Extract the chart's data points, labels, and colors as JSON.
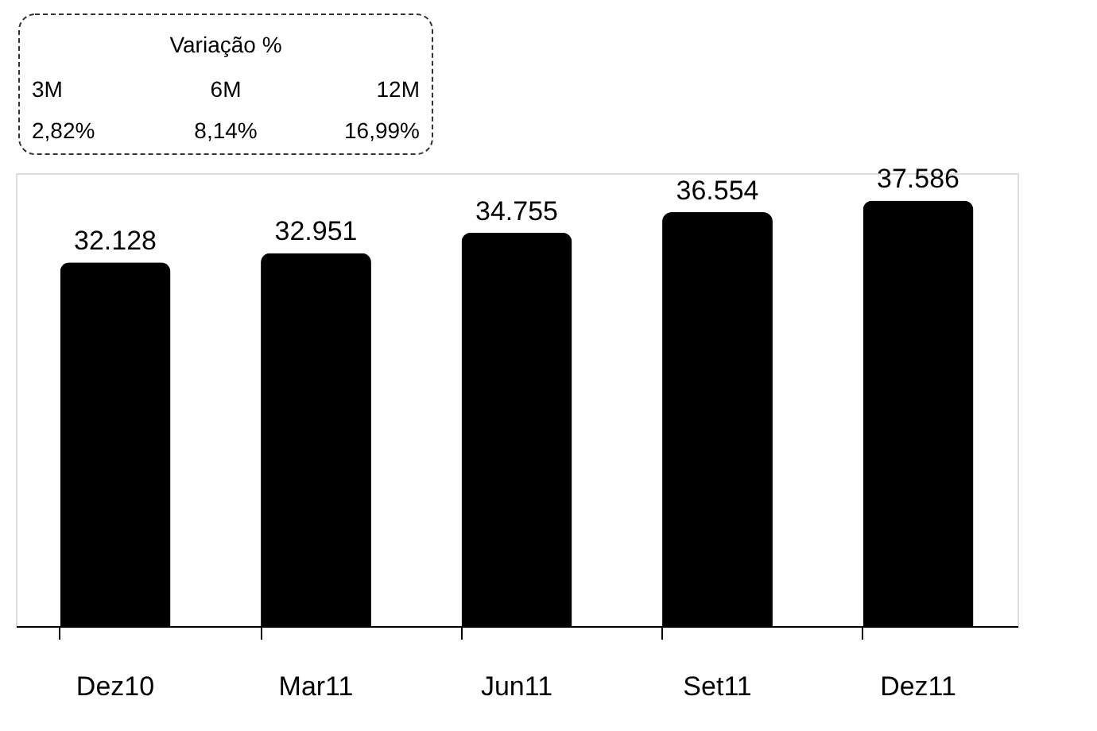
{
  "chart_data": {
    "type": "bar",
    "categories": [
      "Dez10",
      "Mar11",
      "Jun11",
      "Set11",
      "Dez11"
    ],
    "values": [
      32128,
      32951,
      34755,
      36554,
      37586
    ],
    "value_labels": [
      "32.128",
      "32.951",
      "34.755",
      "36.554",
      "37.586"
    ],
    "color": "#000000",
    "tick_labels": "x",
    "grid": false,
    "annotations": [
      "Variação %",
      "3M",
      "6M",
      "12M",
      "2,82%",
      "8,14%",
      "16,99%"
    ]
  }
}
